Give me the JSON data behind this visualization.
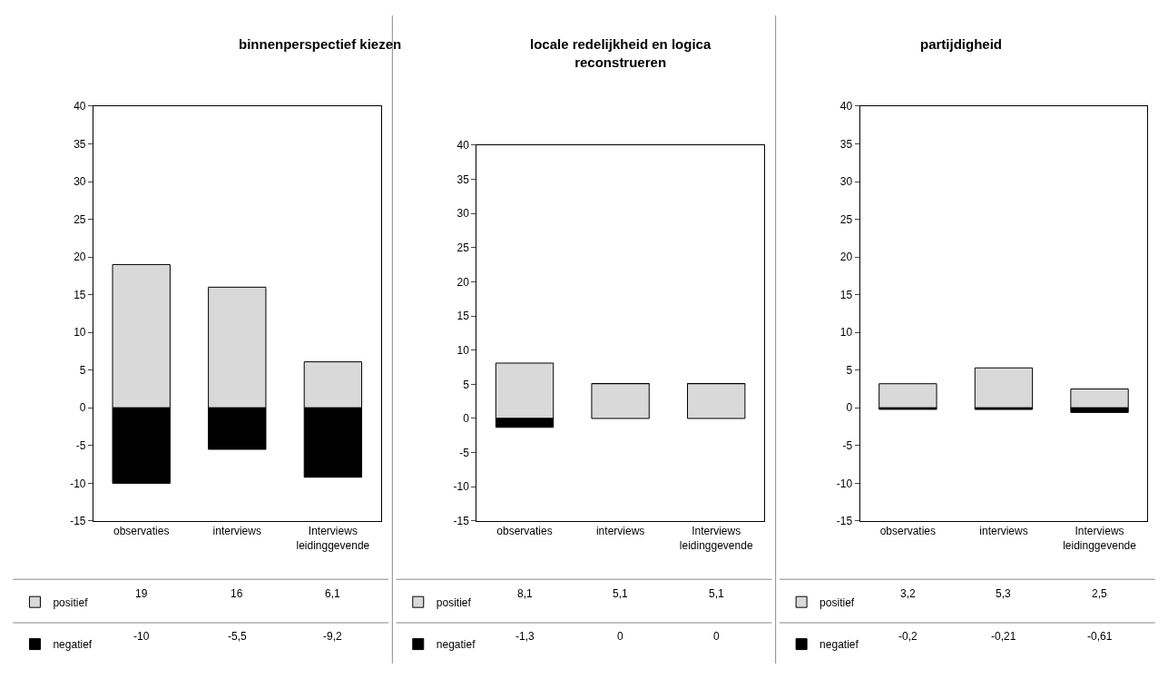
{
  "chart_data": [
    {
      "type": "bar",
      "title": "binnenperspectief kiezen",
      "categories": [
        "observaties",
        "interviews",
        "Interviews leidinggevende"
      ],
      "stacked": true,
      "ylim": [
        -15,
        40
      ],
      "yticks": [
        -15,
        -10,
        -5,
        0,
        5,
        10,
        15,
        20,
        25,
        30,
        35,
        40
      ],
      "legend": "bottom left",
      "series": [
        {
          "name": "positief",
          "color": "#d9d9d9",
          "values": [
            19,
            16,
            6.1
          ],
          "value_labels": [
            "19",
            "16",
            "6,1"
          ]
        },
        {
          "name": "negatief",
          "color": "#000000",
          "values": [
            -10,
            -5.5,
            -9.2
          ],
          "value_labels": [
            "-10",
            "-5,5",
            "-9,2"
          ]
        }
      ]
    },
    {
      "type": "bar",
      "title": "locale redelijkheid en logica reconstrueren",
      "categories": [
        "observaties",
        "interviews",
        "Interviews leidinggevende"
      ],
      "stacked": true,
      "ylim": [
        -15,
        40
      ],
      "yticks": [
        -15,
        -10,
        -5,
        0,
        5,
        10,
        15,
        20,
        25,
        30,
        35,
        40
      ],
      "legend": "bottom left",
      "series": [
        {
          "name": "positief",
          "color": "#d9d9d9",
          "values": [
            8.1,
            5.1,
            5.1
          ],
          "value_labels": [
            "8,1",
            "5,1",
            "5,1"
          ]
        },
        {
          "name": "negatief",
          "color": "#000000",
          "values": [
            -1.3,
            0,
            0
          ],
          "value_labels": [
            "-1,3",
            "0",
            "0"
          ]
        }
      ]
    },
    {
      "type": "bar",
      "title": "partijdigheid",
      "categories": [
        "observaties",
        "interviews",
        "Interviews leidinggevende"
      ],
      "stacked": true,
      "ylim": [
        -15,
        40
      ],
      "yticks": [
        -15,
        -10,
        -5,
        0,
        5,
        10,
        15,
        20,
        25,
        30,
        35,
        40
      ],
      "legend": "bottom left",
      "series": [
        {
          "name": "positief",
          "color": "#d9d9d9",
          "values": [
            3.2,
            5.3,
            2.5
          ],
          "value_labels": [
            "3,2",
            "5,3",
            "2,5"
          ]
        },
        {
          "name": "negatief",
          "color": "#000000",
          "values": [
            -0.2,
            -0.21,
            -0.61
          ],
          "value_labels": [
            "-0,2",
            "-0,21",
            "-0,61"
          ]
        }
      ]
    }
  ]
}
